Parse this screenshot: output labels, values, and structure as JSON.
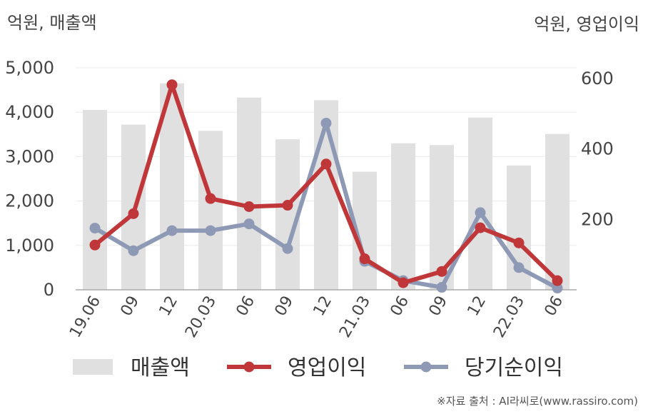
{
  "chart_data": {
    "type": "bar",
    "unit_left": "억원, 매출액",
    "unit_right": "억원, 영업이익",
    "source": "※자료 출처 : AI라씨로(www.rassiro.com)",
    "categories": [
      "19.06",
      "09",
      "12",
      "20.03",
      "06",
      "09",
      "12",
      "21.03",
      "06",
      "09",
      "12",
      "22.03",
      "06"
    ],
    "y_left": {
      "ticks": [
        "0",
        "1,000",
        "2,000",
        "3,000",
        "4,000",
        "5,000"
      ],
      "ylim": [
        0,
        5000
      ]
    },
    "y_right": {
      "ticks": [
        "200",
        "400",
        "600"
      ],
      "ylim": [
        0,
        630
      ]
    },
    "series": [
      {
        "name": "매출액",
        "type": "bar",
        "axis": "left",
        "color": "#e0e0e0",
        "values": [
          4050,
          3720,
          4650,
          3580,
          4330,
          3390,
          4270,
          2660,
          3300,
          3260,
          3880,
          2800,
          3510
        ]
      },
      {
        "name": "영업이익",
        "type": "line",
        "axis": "right",
        "color": "#c0373a",
        "values": [
          127,
          216,
          582,
          259,
          236,
          240,
          357,
          88,
          20,
          52,
          176,
          133,
          26
        ]
      },
      {
        "name": "당기순이익",
        "type": "line",
        "axis": "right",
        "color": "#8e9ab5",
        "values": [
          175,
          111,
          168,
          168,
          187,
          117,
          473,
          81,
          26,
          7,
          219,
          63,
          5
        ]
      }
    ],
    "legend": {
      "position": "bottom"
    },
    "grid": true
  }
}
